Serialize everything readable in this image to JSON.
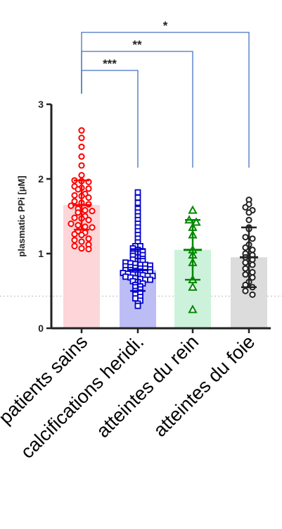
{
  "chart_data": {
    "type": "bar",
    "title": "",
    "xlabel": "",
    "ylabel": "plasmatic PPi  [µM]",
    "ylim": [
      0,
      3
    ],
    "yticks": [
      0,
      1,
      2,
      3
    ],
    "reference_line": 0.43,
    "categories": [
      "patients sains",
      "calcifications heridi.",
      "atteintes du rein",
      "atteintes du foie"
    ],
    "values": [
      1.65,
      0.78,
      1.05,
      0.95
    ],
    "sd": [
      0.33,
      0.28,
      0.4,
      0.4
    ],
    "colors": [
      "#ff0000",
      "#0000cc",
      "#008800",
      "#222222"
    ],
    "fills": [
      "#fcd6d9",
      "#bdbdf5",
      "#cdf2dc",
      "#dcdcdc"
    ],
    "markers": [
      "circle",
      "square",
      "triangle",
      "circle"
    ],
    "points": [
      [
        2.65,
        2.55,
        2.43,
        2.3,
        2.18,
        2.05,
        1.98,
        1.97,
        1.96,
        1.9,
        1.88,
        1.87,
        1.86,
        1.8,
        1.78,
        1.77,
        1.75,
        1.7,
        1.68,
        1.66,
        1.64,
        1.6,
        1.58,
        1.57,
        1.55,
        1.5,
        1.48,
        1.47,
        1.45,
        1.4,
        1.38,
        1.36,
        1.35,
        1.3,
        1.28,
        1.26,
        1.25,
        1.2,
        1.18,
        1.16,
        1.12,
        1.1,
        1.07,
        1.06
      ],
      [
        1.82,
        1.75,
        1.68,
        1.6,
        1.55,
        1.5,
        1.45,
        1.4,
        1.35,
        1.3,
        1.25,
        1.2,
        1.15,
        1.1,
        1.1,
        1.07,
        1.05,
        1.03,
        1.0,
        1.0,
        0.98,
        0.97,
        0.95,
        0.93,
        0.92,
        0.9,
        0.9,
        0.88,
        0.87,
        0.86,
        0.85,
        0.85,
        0.84,
        0.83,
        0.82,
        0.81,
        0.8,
        0.8,
        0.79,
        0.78,
        0.78,
        0.77,
        0.76,
        0.75,
        0.75,
        0.74,
        0.73,
        0.72,
        0.72,
        0.71,
        0.7,
        0.7,
        0.69,
        0.68,
        0.67,
        0.66,
        0.65,
        0.65,
        0.63,
        0.62,
        0.6,
        0.58,
        0.56,
        0.55,
        0.52,
        0.5,
        0.48,
        0.45,
        0.42,
        0.4,
        0.37,
        0.33,
        0.3
      ],
      [
        1.58,
        1.45,
        1.42,
        1.35,
        1.25,
        1.05,
        0.98,
        0.88,
        0.65,
        0.55,
        0.25
      ],
      [
        1.72,
        1.66,
        1.62,
        1.58,
        1.55,
        1.45,
        1.35,
        1.33,
        1.22,
        1.2,
        1.12,
        1.08,
        1.05,
        1.0,
        0.98,
        0.95,
        0.92,
        0.88,
        0.85,
        0.8,
        0.75,
        0.72,
        0.68,
        0.62,
        0.58,
        0.55,
        0.5,
        0.45
      ]
    ],
    "significance": [
      {
        "from": 0,
        "to": 3,
        "label": "*"
      },
      {
        "from": 0,
        "to": 2,
        "label": "**"
      },
      {
        "from": 0,
        "to": 1,
        "label": "***"
      }
    ]
  }
}
